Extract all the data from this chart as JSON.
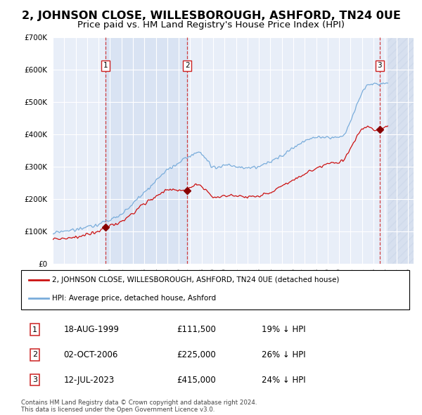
{
  "title": "2, JOHNSON CLOSE, WILLESBOROUGH, ASHFORD, TN24 0UE",
  "subtitle": "Price paid vs. HM Land Registry's House Price Index (HPI)",
  "title_fontsize": 11.5,
  "subtitle_fontsize": 9.5,
  "ylim": [
    0,
    700000
  ],
  "yticks": [
    0,
    100000,
    200000,
    300000,
    400000,
    500000,
    600000,
    700000
  ],
  "ytick_labels": [
    "£0",
    "£100K",
    "£200K",
    "£300K",
    "£400K",
    "£500K",
    "£600K",
    "£700K"
  ],
  "xlim_start": 1995.0,
  "xlim_end": 2026.5,
  "background_color": "#ffffff",
  "plot_bg_color": "#e8eef8",
  "grid_color": "#ffffff",
  "shade_color": "#d0dcf0",
  "sales": [
    {
      "label": 1,
      "year": 1999.63,
      "price": 111500,
      "date_str": "18-AUG-1999",
      "price_str": "£111,500",
      "pct_str": "19% ↓ HPI"
    },
    {
      "label": 2,
      "year": 2006.75,
      "price": 225000,
      "date_str": "02-OCT-2006",
      "price_str": "£225,000",
      "pct_str": "26% ↓ HPI"
    },
    {
      "label": 3,
      "year": 2023.53,
      "price": 415000,
      "date_str": "12-JUL-2023",
      "price_str": "£415,000",
      "pct_str": "24% ↓ HPI"
    }
  ],
  "legend_label_red": "2, JOHNSON CLOSE, WILLESBOROUGH, ASHFORD, TN24 0UE (detached house)",
  "legend_label_blue": "HPI: Average price, detached house, Ashford",
  "footer_line1": "Contains HM Land Registry data © Crown copyright and database right 2024.",
  "footer_line2": "This data is licensed under the Open Government Licence v3.0."
}
